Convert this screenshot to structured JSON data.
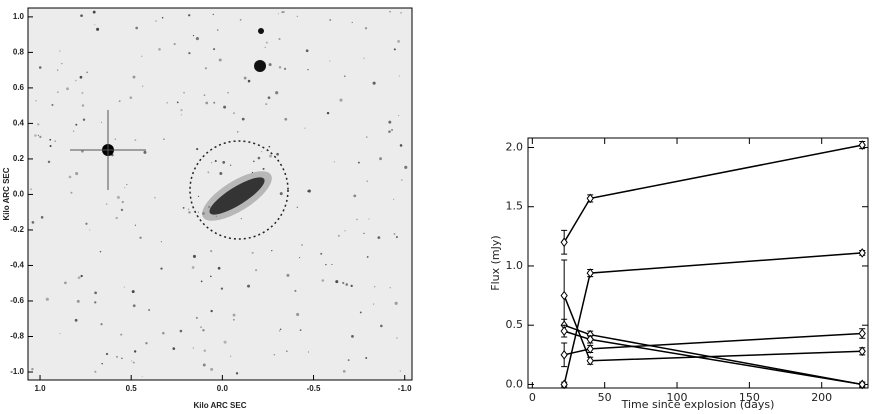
{
  "chart_data": [
    {
      "type": "image",
      "x_label": "Kilo ARC SEC",
      "y_label": "Kilo ARC SEC",
      "xlim": [
        1.066,
        -1.04
      ],
      "ylim": [
        -1.045,
        1.05
      ],
      "xticks": [
        {
          "value": 1,
          "label": "1.0"
        },
        {
          "value": 0.5,
          "label": "0.5"
        },
        {
          "value": 0,
          "label": "0.0"
        },
        {
          "value": -0.5,
          "label": "-0.5"
        },
        {
          "value": -1,
          "label": "-1.0"
        }
      ],
      "yticks": [
        {
          "value": 1,
          "label": "1.0"
        },
        {
          "value": 0.8,
          "label": "0.8"
        },
        {
          "value": 0.6,
          "label": "0.6"
        },
        {
          "value": 0.4,
          "label": "0.4"
        },
        {
          "value": 0.2,
          "label": "0.2"
        },
        {
          "value": 0,
          "label": "0.0"
        },
        {
          "value": -0.2,
          "label": "-0.2"
        },
        {
          "value": -0.4,
          "label": "-0.4"
        },
        {
          "value": -0.6,
          "label": "-0.6"
        },
        {
          "value": -0.8,
          "label": "-0.8"
        },
        {
          "value": -1,
          "label": "-1.0"
        }
      ]
    },
    {
      "type": "line",
      "x_label": "Time since explosion (days)",
      "y_label": "Flux (mJy)",
      "xlim": [
        -3,
        232
      ],
      "ylim": [
        -0.03,
        2.08
      ],
      "xticks": [
        0,
        50,
        100,
        150,
        200
      ],
      "yticks": [
        {
          "value": 0,
          "label": "0.0"
        },
        {
          "value": 0.5,
          "label": "0.5"
        },
        {
          "value": 1,
          "label": "1.0"
        },
        {
          "value": 1.5,
          "label": "1.5"
        },
        {
          "value": 2,
          "label": "2.0"
        }
      ],
      "x": [
        22,
        40,
        228
      ],
      "color": "#000000",
      "series": [
        {
          "values": [
            1.2,
            1.57,
            2.02
          ],
          "errors": [
            0.1,
            0.03,
            0.03
          ]
        },
        {
          "values": [
            0.0,
            0.94,
            1.11
          ],
          "errors": [
            0.02,
            0.03,
            0.02
          ]
        },
        {
          "values": [
            0.75,
            0.2,
            0.28
          ],
          "errors": [
            0.3,
            0.03,
            0.03
          ]
        },
        {
          "values": [
            0.5,
            0.42,
            0.0
          ],
          "errors": [
            0.05,
            0.03,
            0.02
          ]
        },
        {
          "values": [
            0.45,
            0.38,
            0.0
          ],
          "errors": [
            0.05,
            0.03,
            0.02
          ]
        },
        {
          "values": [
            0.25,
            0.3,
            0.43
          ],
          "errors": [
            0.1,
            0.03,
            0.04
          ]
        }
      ]
    }
  ]
}
